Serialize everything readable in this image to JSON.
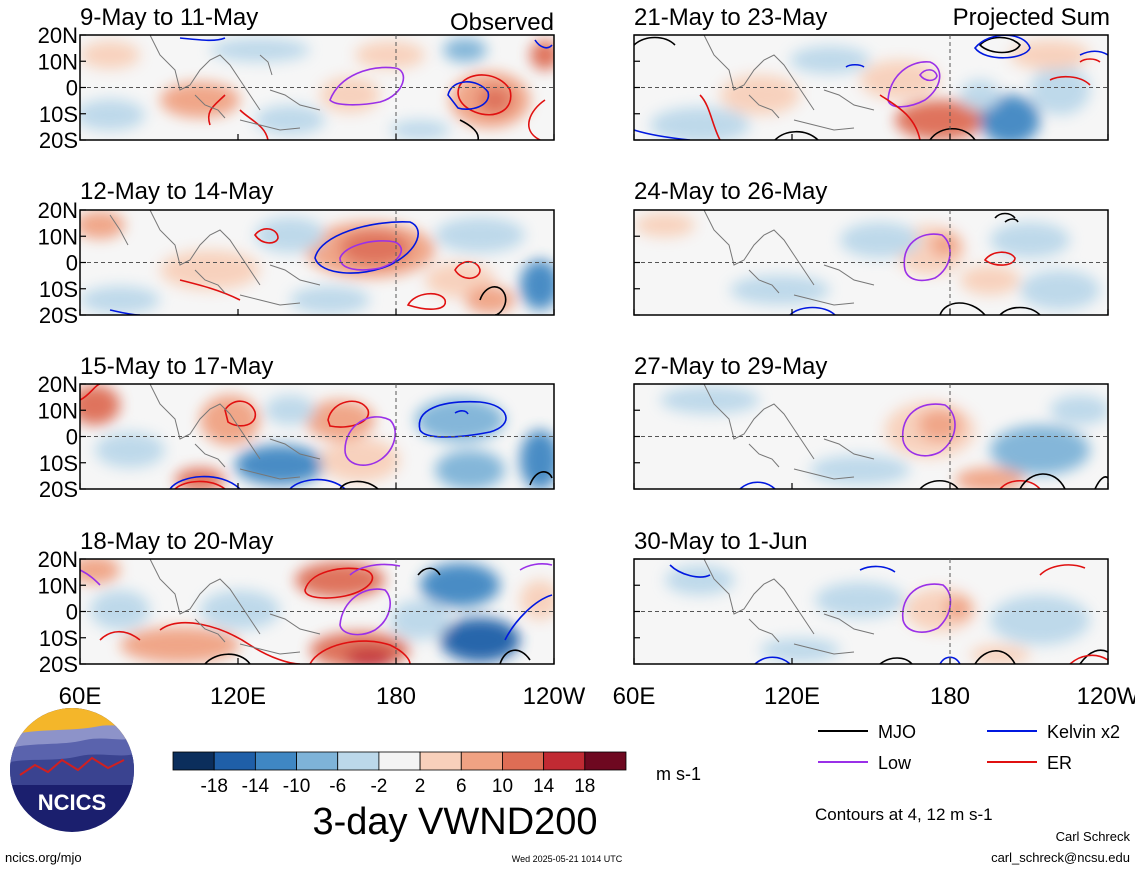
{
  "header": {
    "left_label": "Observed",
    "right_label": "Projected Sum"
  },
  "panels": {
    "observed": [
      {
        "title": "9-May to 11-May"
      },
      {
        "title": "12-May to 14-May"
      },
      {
        "title": "15-May to 17-May"
      },
      {
        "title": "18-May to 20-May"
      }
    ],
    "projected": [
      {
        "title": "21-May to 23-May"
      },
      {
        "title": "24-May to 26-May"
      },
      {
        "title": "27-May to 29-May"
      },
      {
        "title": "30-May to 1-Jun"
      }
    ]
  },
  "axes": {
    "lat_labels": [
      "20N",
      "10N",
      "0",
      "10S",
      "20S"
    ],
    "lon_labels": [
      "60E",
      "120E",
      "180",
      "120W"
    ]
  },
  "colorbar": {
    "tick_labels": [
      "-18",
      "-14",
      "-10",
      "-6",
      "-2",
      "2",
      "6",
      "10",
      "14",
      "18"
    ],
    "colors": [
      "#0b2e5c",
      "#1f5fa8",
      "#3f87c3",
      "#7eb3d8",
      "#bcd8ea",
      "#f4f4f4",
      "#f8d0bb",
      "#f0a283",
      "#de6d55",
      "#c12a33",
      "#6e0820"
    ],
    "unit": "m s-1"
  },
  "legend": {
    "items": [
      {
        "label": "MJO",
        "color": "#000000"
      },
      {
        "label": "Kelvin x2",
        "color": "#0018e0"
      },
      {
        "label": "Low",
        "color": "#9a30e8"
      },
      {
        "label": "ER",
        "color": "#e01010"
      }
    ],
    "contour_note": "Contours at 4, 12 m s-1"
  },
  "main_title": "3-day VWND200",
  "logo": {
    "text": "NCICS"
  },
  "footer": {
    "url": "ncics.org/mjo",
    "timestamp": "Wed 2025-05-21 1014 UTC",
    "author": "Carl Schreck",
    "email": "carl_schreck@ncsu.edu"
  }
}
